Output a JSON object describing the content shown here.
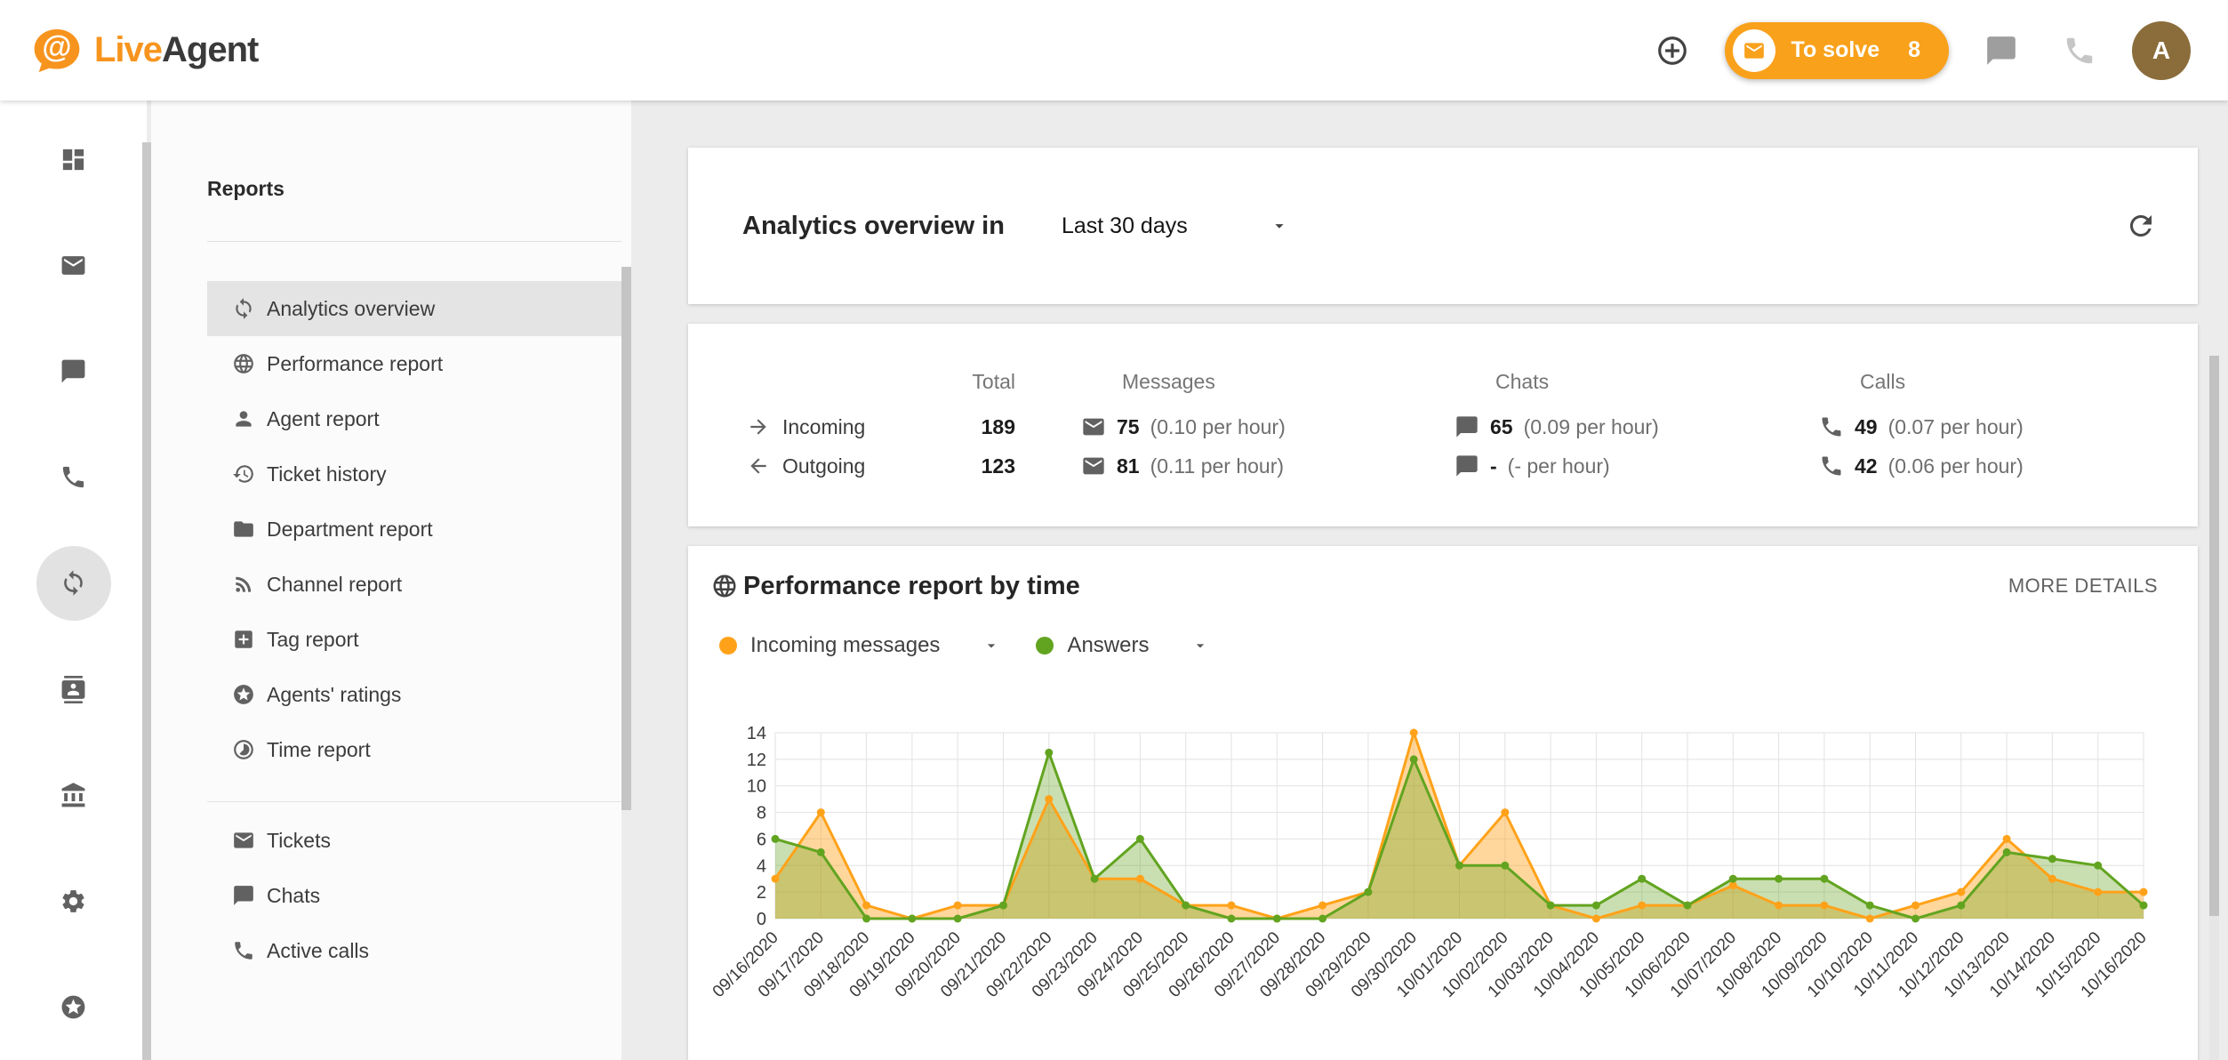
{
  "colors": {
    "brand_orange": "#F7941E",
    "pill_orange": "#F9A11B",
    "avatar_bg": "#8A6D3B",
    "chart_orange": "#FFA21A",
    "chart_green": "#62A420"
  },
  "header": {
    "brand_first": "Live",
    "brand_second": "Agent",
    "logo_glyph": "@",
    "to_solve_label": "To solve",
    "to_solve_count": "8",
    "avatar_initial": "A",
    "action_icons": [
      "add-circle",
      "chat",
      "phone"
    ]
  },
  "icon_sidebar": {
    "items": [
      {
        "icon": "dashboard",
        "selected": false
      },
      {
        "icon": "mail",
        "selected": false
      },
      {
        "icon": "chat",
        "selected": false
      },
      {
        "icon": "phone",
        "selected": false
      },
      {
        "icon": "sync",
        "selected": true
      },
      {
        "icon": "contacts",
        "selected": false
      },
      {
        "icon": "bank",
        "selected": false
      },
      {
        "icon": "settings",
        "selected": false
      },
      {
        "icon": "star-circle",
        "selected": false
      }
    ]
  },
  "reports_panel": {
    "title": "Reports",
    "items": [
      {
        "icon": "sync",
        "label": "Analytics overview",
        "selected": true
      },
      {
        "icon": "globe",
        "label": "Performance report",
        "selected": false
      },
      {
        "icon": "person",
        "label": "Agent report",
        "selected": false
      },
      {
        "icon": "history",
        "label": "Ticket history",
        "selected": false
      },
      {
        "icon": "folder",
        "label": "Department report",
        "selected": false
      },
      {
        "icon": "rss",
        "label": "Channel report",
        "selected": false
      },
      {
        "icon": "tag",
        "label": "Tag report",
        "selected": false
      },
      {
        "icon": "star-circle",
        "label": "Agents' ratings",
        "selected": false
      },
      {
        "icon": "time",
        "label": "Time report",
        "selected": false
      }
    ],
    "secondary_items": [
      {
        "icon": "mail",
        "label": "Tickets"
      },
      {
        "icon": "chat",
        "label": "Chats"
      },
      {
        "icon": "phone",
        "label": "Active calls"
      }
    ]
  },
  "overview_card": {
    "title": "Analytics overview in",
    "range_selector": "Last 30 days"
  },
  "stats_card": {
    "columns": [
      "Total",
      "Messages",
      "Chats",
      "Calls"
    ],
    "rows": [
      {
        "direction": "Incoming",
        "icon": "arrow-right",
        "total": "189",
        "messages": {
          "value": "75",
          "rate": "(0.10 per hour)"
        },
        "chats": {
          "value": "65",
          "rate": "(0.09 per hour)"
        },
        "calls": {
          "value": "49",
          "rate": "(0.07 per hour)"
        }
      },
      {
        "direction": "Outgoing",
        "icon": "arrow-left",
        "total": "123",
        "messages": {
          "value": "81",
          "rate": "(0.11 per hour)"
        },
        "chats": {
          "value": "-",
          "rate": "(- per hour)"
        },
        "calls": {
          "value": "42",
          "rate": "(0.06 per hour)"
        }
      }
    ]
  },
  "performance_card": {
    "title": "Performance report by time",
    "more_details": "MORE DETAILS",
    "legend": [
      {
        "label": "Incoming messages",
        "color": "#FFA21A"
      },
      {
        "label": "Answers",
        "color": "#62A420"
      }
    ]
  },
  "chart_data": {
    "type": "area",
    "title": "Performance report by time",
    "grid": true,
    "legend_position": "top-left",
    "ylim": [
      0,
      14
    ],
    "yticks": [
      0,
      2,
      4,
      6,
      8,
      10,
      12,
      14
    ],
    "x": [
      "09/16/2020",
      "09/17/2020",
      "09/18/2020",
      "09/19/2020",
      "09/20/2020",
      "09/21/2020",
      "09/22/2020",
      "09/23/2020",
      "09/24/2020",
      "09/25/2020",
      "09/26/2020",
      "09/27/2020",
      "09/28/2020",
      "09/29/2020",
      "09/30/2020",
      "10/01/2020",
      "10/02/2020",
      "10/03/2020",
      "10/04/2020",
      "10/05/2020",
      "10/06/2020",
      "10/07/2020",
      "10/08/2020",
      "10/09/2020",
      "10/10/2020",
      "10/11/2020",
      "10/12/2020",
      "10/13/2020",
      "10/14/2020",
      "10/15/2020",
      "10/16/2020"
    ],
    "series": [
      {
        "name": "Incoming messages",
        "color": "#FFA21A",
        "fill": "rgba(255,167,38,0.45)",
        "values": [
          3,
          8,
          1,
          0,
          1,
          1,
          9,
          3,
          3,
          1,
          1,
          0,
          1,
          2,
          14,
          4,
          8,
          1,
          0,
          1,
          1,
          2.5,
          1,
          1,
          0,
          1,
          2,
          6,
          3,
          2,
          2
        ]
      },
      {
        "name": "Answers",
        "color": "#62A420",
        "fill": "rgba(104,164,32,0.35)",
        "values": [
          6,
          5,
          0,
          0,
          0,
          1,
          12.5,
          3,
          6,
          1,
          0,
          0,
          0,
          2,
          12,
          4,
          4,
          1,
          1,
          3,
          1,
          3,
          3,
          3,
          1,
          0,
          1,
          5,
          4.5,
          4,
          1
        ]
      }
    ]
  }
}
